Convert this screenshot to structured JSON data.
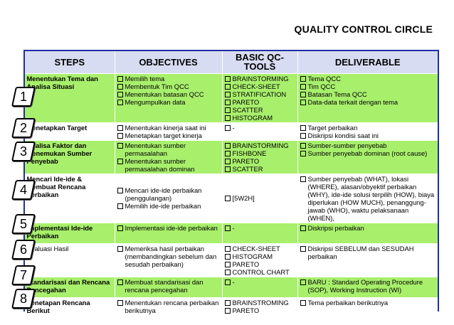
{
  "title": "QUALITY CONTROL CIRCLE",
  "headers": {
    "steps": "STEPS",
    "objectives": "OBJECTIVES",
    "tools": "BASIC    QC-TOOLS",
    "deliverable": "DELIVERABLE"
  },
  "rows": [
    {
      "num": "1",
      "step": "Menentukan Tema dan Analisa Situasi",
      "objectives": [
        "Memilih tema",
        "Membentuk Tim QCC",
        "Menentukan batasan QCC",
        "Mengumpulkan data"
      ],
      "tools": [
        "BRAINSTORMING",
        "CHECK-SHEET",
        "STRATIFICATION",
        "PARETO",
        "SCATTER",
        "HISTOGRAM"
      ],
      "deliverable": [
        "Tema QCC",
        "Tim QCC",
        "Batasan Tema QCC",
        "Data-data terkait dengan tema"
      ]
    },
    {
      "num": "2",
      "step": "Menetapkan Target",
      "objectives": [
        "Menentukan kinerja saat ini",
        "Menetapkan target kinerja"
      ],
      "tools": [
        "-"
      ],
      "deliverable": [
        "Target perbaikan",
        "Diskripsi kondisi saat ini"
      ]
    },
    {
      "num": "3",
      "step": "Analisa Faktor dan Menemukan Sumber Penyebab",
      "objectives": [
        "Menentukan sumber permasalahan",
        "Menentukan sumber permasalahan dominan"
      ],
      "tools": [
        "BRAINSTORMING",
        "FISHBONE",
        "PARETO",
        "SCATTER"
      ],
      "deliverable": [
        "Sumber-sumber penyebab",
        "Sumber penyebab dominan (root cause)"
      ]
    },
    {
      "num": "4",
      "step": "Mencari Ide-ide & Membuat Rencana Perbaikan",
      "objectives": [
        "Mencari ide-ide perbaikan (penggulangan)",
        "Memilih ide-ide perbaikan"
      ],
      "tools": [
        "[5W2H]"
      ],
      "deliverable": [
        "Sumber penyebab (WHAT), lokasi (WHERE), alasan/obyektif perbaikan (WHY), ide-ide solusi terpilih (HOW), biaya diperlukan (HOW MUCH), penanggung-jawab (WHO), waktu pelaksanaan (WHEN),"
      ]
    },
    {
      "num": "5",
      "step": "Implementasi Ide-ide Perbaikan",
      "objectives": [
        "Implementasi ide-ide perbaikan"
      ],
      "tools": [
        "-"
      ],
      "deliverable": [
        "Diskripsi perbaikan"
      ]
    },
    {
      "num": "6",
      "step": "Evaluasi Hasil",
      "objectives": [
        "Memeriksa hasil perbaikan (membandingkan sebelum dan sesudah perbaikan)"
      ],
      "tools": [
        "CHECK-SHEET",
        "HISTOGRAM",
        "PARETO",
        "CONTROL CHART"
      ],
      "deliverable": [
        "Diskripsi SEBELUM dan SESUDAH perbaikan"
      ]
    },
    {
      "num": "7",
      "step": "Standarisasi dan Rencana Pencegahan",
      "objectives": [
        "Membuat standarisasi dan rencana pencegahan"
      ],
      "tools": [
        "-"
      ],
      "deliverable": [
        "BARU : Standard Operating Procedure (SOP), Working Instruction (WI)"
      ]
    },
    {
      "num": "8",
      "step": "Penetapan Rencana Berikut",
      "objectives": [
        "Menentukan rencana perbaikan berikutnya"
      ],
      "tools": [
        "BRAINSTROMING",
        "PARETO"
      ],
      "deliverable": [
        "Tema perbaikan berikutnya"
      ]
    }
  ]
}
